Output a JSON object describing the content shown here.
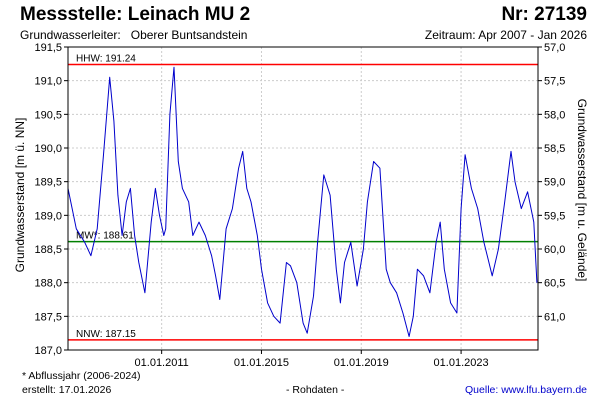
{
  "header": {
    "title": "Messstelle: Leinach MU 2",
    "number": "Nr: 27139",
    "aquifer_label": "Grundwasserleiter:",
    "aquifer_value": "Oberer Buntsandstein",
    "period": "Zeitraum: Apr 2007 - Jan 2026"
  },
  "footer": {
    "note": "* Abflussjahr (2006-2024)",
    "created": "erstellt:  17.01.2026",
    "raw": "- Rohdaten -",
    "source": "Quelle: www.lfu.bayern.de"
  },
  "colors": {
    "series": "#0000cc",
    "hhw": "#ff0000",
    "nnw": "#ff0000",
    "mw": "#008000",
    "grid": "#cccccc"
  },
  "chart_data": {
    "type": "line",
    "ylabel": "Grundwasserstand [m ü. NN]",
    "ylabel_right": "Grundwasserstand [m u. Gelände]",
    "ylim": [
      187.0,
      191.5
    ],
    "yticks": [
      187.0,
      187.5,
      188.0,
      188.5,
      189.0,
      189.5,
      190.0,
      190.5,
      191.0,
      191.5
    ],
    "ytick_labels": [
      "187,0",
      "187,5",
      "188,0",
      "188,5",
      "189,0",
      "189,5",
      "190,0",
      "190,5",
      "191,0",
      "191,5"
    ],
    "right_ylim": [
      61.5,
      57.0
    ],
    "right_yticks": [
      57.0,
      57.5,
      58.0,
      58.5,
      59.0,
      59.5,
      60.0,
      60.5,
      61.0
    ],
    "right_ytick_labels": [
      "57,0",
      "57,5",
      "58,0",
      "58,5",
      "59,0",
      "59,5",
      "60,0",
      "60,5",
      "61,0"
    ],
    "xlim": [
      "2007-04-01",
      "2026-01-31"
    ],
    "xticks": [
      "2011-01-01",
      "2015-01-01",
      "2019-01-01",
      "2023-01-01"
    ],
    "xtick_labels": [
      "01.01.2011",
      "01.01.2015",
      "01.01.2019",
      "01.01.2023"
    ],
    "grid": true,
    "reference_lines": [
      {
        "label": "HHW: 191.24",
        "value": 191.24
      },
      {
        "label": "MW*: 188.61",
        "value": 188.61
      },
      {
        "label": "NNW: 187.15",
        "value": 187.15
      }
    ],
    "series": [
      {
        "x": [
          "2007-04-01",
          "2007-08-01",
          "2007-12-01",
          "2008-03-01",
          "2008-06-01",
          "2008-09-01",
          "2008-12-01",
          "2009-02-01",
          "2009-04-01",
          "2009-06-01",
          "2009-08-01",
          "2009-10-01",
          "2009-12-01",
          "2010-02-01",
          "2010-05-01",
          "2010-08-01",
          "2010-10-01",
          "2010-12-01",
          "2011-02-01",
          "2011-03-01",
          "2011-05-01",
          "2011-07-01",
          "2011-09-01",
          "2011-11-01",
          "2012-02-01",
          "2012-04-01",
          "2012-07-01",
          "2012-10-01",
          "2013-01-01",
          "2013-03-01",
          "2013-05-01",
          "2013-08-01",
          "2013-11-01",
          "2014-02-01",
          "2014-04-01",
          "2014-06-01",
          "2014-08-01",
          "2014-11-01",
          "2015-01-01",
          "2015-04-01",
          "2015-07-01",
          "2015-10-01",
          "2016-01-01",
          "2016-03-01",
          "2016-06-01",
          "2016-09-01",
          "2016-11-01",
          "2017-02-01",
          "2017-04-01",
          "2017-07-01",
          "2017-10-01",
          "2018-01-01",
          "2018-03-01",
          "2018-05-01",
          "2018-08-01",
          "2018-11-01",
          "2019-02-01",
          "2019-04-01",
          "2019-07-01",
          "2019-10-01",
          "2020-01-01",
          "2020-03-01",
          "2020-06-01",
          "2020-09-01",
          "2020-12-01",
          "2021-02-01",
          "2021-04-01",
          "2021-07-01",
          "2021-10-01",
          "2022-01-01",
          "2022-03-01",
          "2022-05-01",
          "2022-08-01",
          "2022-11-01",
          "2023-01-01",
          "2023-03-01",
          "2023-06-01",
          "2023-09-01",
          "2023-12-01",
          "2024-02-01",
          "2024-04-01",
          "2024-07-01",
          "2024-10-01",
          "2025-01-01",
          "2025-03-01",
          "2025-06-01",
          "2025-09-01",
          "2025-12-01",
          "2026-01-15"
        ],
        "values": [
          189.4,
          188.8,
          188.6,
          188.4,
          188.8,
          189.9,
          191.05,
          190.4,
          189.3,
          188.7,
          189.2,
          189.4,
          188.7,
          188.3,
          187.85,
          188.9,
          189.4,
          189.0,
          188.7,
          188.8,
          190.5,
          191.2,
          189.8,
          189.4,
          189.2,
          188.7,
          188.9,
          188.7,
          188.4,
          188.1,
          187.75,
          188.8,
          189.1,
          189.7,
          189.95,
          189.4,
          189.2,
          188.7,
          188.2,
          187.7,
          187.5,
          187.4,
          188.3,
          188.25,
          188.0,
          187.4,
          187.25,
          187.8,
          188.6,
          189.6,
          189.3,
          188.2,
          187.7,
          188.3,
          188.6,
          187.95,
          188.5,
          189.2,
          189.8,
          189.7,
          188.2,
          188.0,
          187.85,
          187.55,
          187.2,
          187.5,
          188.2,
          188.1,
          187.85,
          188.6,
          188.9,
          188.2,
          187.7,
          187.55,
          189.1,
          189.9,
          189.4,
          189.1,
          188.6,
          188.35,
          188.1,
          188.5,
          189.2,
          189.95,
          189.5,
          189.1,
          189.35,
          188.9,
          188.0
        ]
      }
    ]
  }
}
